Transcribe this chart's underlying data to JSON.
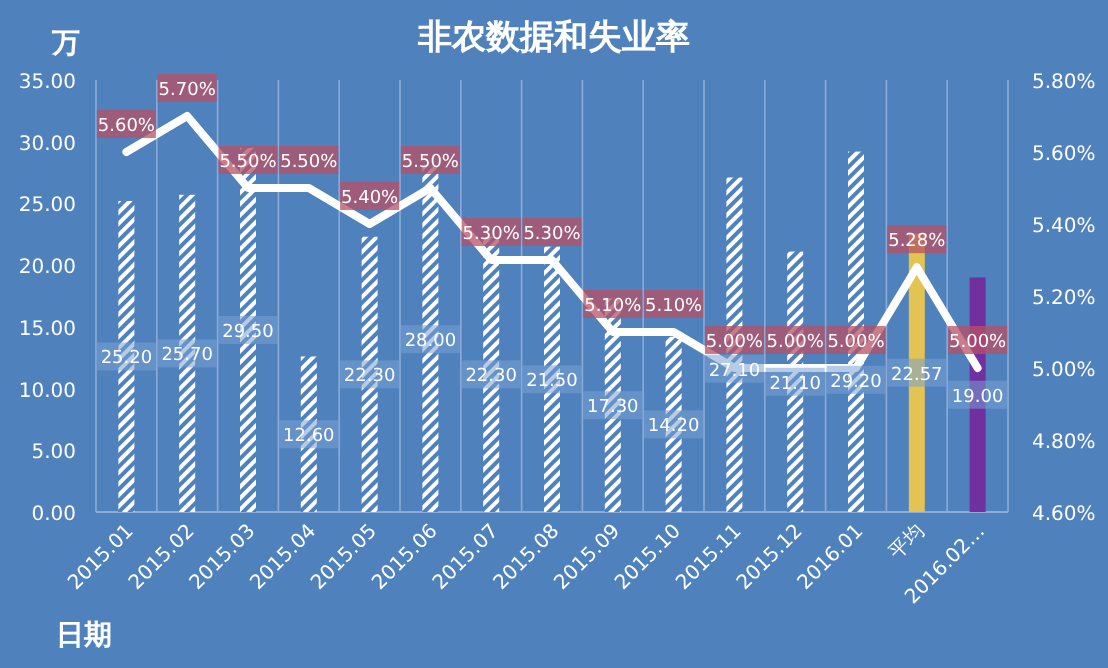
{
  "chart_data": {
    "type": "bar",
    "title": "非农数据和失业率",
    "xlabel": "日期",
    "ylabel": "万",
    "categories": [
      "2015.01",
      "2015.02",
      "2015.03",
      "2015.04",
      "2015.05",
      "2015.06",
      "2015.07",
      "2015.08",
      "2015.09",
      "2015.10",
      "2015.11",
      "2015.12",
      "2016.01",
      "平均",
      "2016.02…"
    ],
    "series": [
      {
        "colors": [
          "#ffffff",
          "#ffffff",
          "#ffffff",
          "#ffffff",
          "#ffffff",
          "#ffffff",
          "#ffffff",
          "#ffffff",
          "#ffffff",
          "#ffffff",
          "#ffffff",
          "#ffffff",
          "#ffffff",
          "#e3c351",
          "#7030a0"
        ],
        "values": [
          25.2,
          25.7,
          29.5,
          12.6,
          22.3,
          28.0,
          22.3,
          21.5,
          17.3,
          14.2,
          27.1,
          21.1,
          29.2,
          22.57,
          19.0
        ],
        "value_labels": [
          "25.20",
          "25.70",
          "29.50",
          "12.60",
          "22.30",
          "28.00",
          "22.30",
          "21.50",
          "17.30",
          "14.20",
          "27.10",
          "21.10",
          "29.20",
          "22.57",
          "19.00"
        ]
      },
      {
        "type": "line",
        "axis": "y2",
        "color": "#ffffff",
        "values": [
          5.6,
          5.7,
          5.5,
          5.5,
          5.4,
          5.5,
          5.3,
          5.3,
          5.1,
          5.1,
          5.0,
          5.0,
          5.0,
          5.28,
          5.0
        ],
        "value_labels": [
          "5.60%",
          "5.70%",
          "5.50%",
          "5.50%",
          "5.40%",
          "5.50%",
          "5.30%",
          "5.30%",
          "5.10%",
          "5.10%",
          "5.00%",
          "5.00%",
          "5.00%",
          "5.28%",
          "5.00%"
        ]
      }
    ],
    "ylim": [
      0,
      35
    ],
    "yticks": [
      {
        "value": 0,
        "label": "0.00"
      },
      {
        "value": 5,
        "label": "5.00"
      },
      {
        "value": 10,
        "label": "10.00"
      },
      {
        "value": 15,
        "label": "15.00"
      },
      {
        "value": 20,
        "label": "20.00"
      },
      {
        "value": 25,
        "label": "25.00"
      },
      {
        "value": 30,
        "label": "30.00"
      },
      {
        "value": 35,
        "label": "35.00"
      }
    ],
    "y2lim": [
      4.6,
      5.8
    ],
    "y2ticks": [
      {
        "value": 4.6,
        "label": "4.60%"
      },
      {
        "value": 4.8,
        "label": "4.80%"
      },
      {
        "value": 5.0,
        "label": "5.00%"
      },
      {
        "value": 5.2,
        "label": "5.20%"
      },
      {
        "value": 5.4,
        "label": "5.40%"
      },
      {
        "value": 5.6,
        "label": "5.60%"
      },
      {
        "value": 5.8,
        "label": "5.80%"
      }
    ],
    "grid": "x",
    "legend": false,
    "marker": "none",
    "line_style": "solid",
    "data_labels": true
  }
}
